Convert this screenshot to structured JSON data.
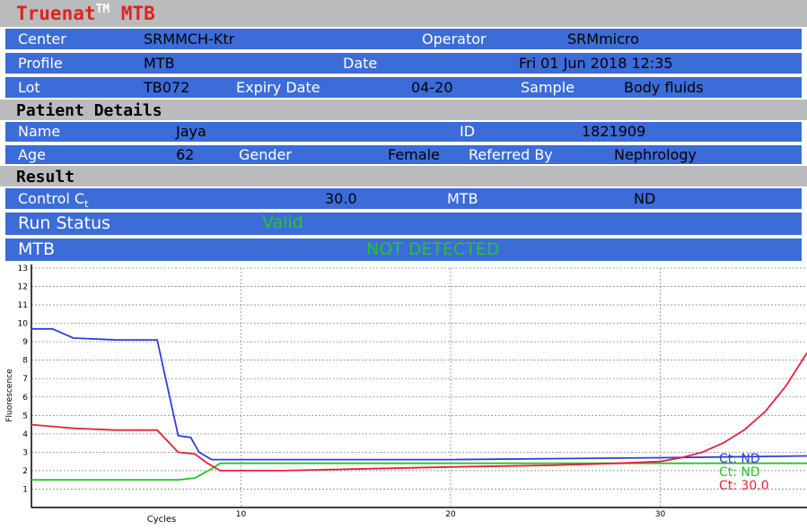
{
  "header": {
    "brand_prefix": "Truenat",
    "trademark": "TM",
    "product": "MTB"
  },
  "info": {
    "center_label": "Center",
    "center_value": "SRMMCH-Ktr",
    "operator_label": "Operator",
    "operator_value": "SRMmicro",
    "profile_label": "Profile",
    "profile_value": "MTB",
    "date_label": "Date",
    "date_value": "Fri 01 Jun 2018 12:35",
    "lot_label": "Lot",
    "lot_value": "TB072",
    "expiry_label": "Expiry Date",
    "expiry_value": "04-20",
    "sample_label": "Sample",
    "sample_value": "Body fluids"
  },
  "patient": {
    "section_title": "Patient Details",
    "name_label": "Name",
    "name_value": "Jaya",
    "id_label": "ID",
    "id_value": "1821909",
    "age_label": "Age",
    "age_value": "62",
    "gender_label": "Gender",
    "gender_value": "Female",
    "referred_label": "Referred By",
    "referred_value": "Nephrology"
  },
  "result": {
    "section_title": "Result",
    "control_label": "Control C",
    "control_sub": "t",
    "control_value": "30.0",
    "mtb_label": "MTB",
    "mtb_value": "ND",
    "run_status_label": "Run Status",
    "run_status_value": "Valid",
    "mtb_result_label": "MTB",
    "mtb_result_value": "NOT DETECTED"
  },
  "colors": {
    "header_bg": "#b9bbbd",
    "row_bg": "#3c6cd8",
    "brand_red": "#e0231b",
    "ok_green": "#27c427"
  },
  "chart_data": {
    "type": "line",
    "xlabel": "Cycles",
    "ylabel": "Fluorescence",
    "xlim": [
      0,
      37
    ],
    "ylim": [
      0,
      13
    ],
    "xticks": [
      10,
      20,
      30
    ],
    "yticks": [
      1,
      2,
      3,
      4,
      5,
      6,
      7,
      8,
      9,
      10,
      11,
      12,
      13
    ],
    "grid": true,
    "series": [
      {
        "name": "Ct: ND",
        "color": "#2f3fd8",
        "x": [
          0,
          1,
          2,
          4,
          5,
          6,
          7,
          7.6,
          8,
          8.6,
          9,
          12,
          20,
          30,
          37
        ],
        "y": [
          9.7,
          9.7,
          9.2,
          9.1,
          9.1,
          9.1,
          3.9,
          3.8,
          3.0,
          2.6,
          2.6,
          2.6,
          2.6,
          2.7,
          2.8
        ]
      },
      {
        "name": "Ct: ND",
        "color": "#27c427",
        "x": [
          0,
          2,
          5,
          7,
          7.8,
          8.6,
          9,
          20,
          30,
          37
        ],
        "y": [
          1.5,
          1.5,
          1.5,
          1.5,
          1.6,
          2.1,
          2.4,
          2.4,
          2.4,
          2.4
        ]
      },
      {
        "name": "Ct: 30.0",
        "color": "#e8203a",
        "x": [
          0,
          1,
          2,
          4,
          5,
          6,
          7,
          7.8,
          8.4,
          9,
          12,
          20,
          25,
          28,
          30,
          31,
          32,
          33,
          34,
          35,
          36,
          37
        ],
        "y": [
          4.5,
          4.4,
          4.3,
          4.2,
          4.2,
          4.2,
          3.0,
          2.9,
          2.4,
          2.0,
          2.0,
          2.2,
          2.3,
          2.4,
          2.5,
          2.7,
          3.0,
          3.5,
          4.2,
          5.2,
          6.6,
          8.4
        ]
      }
    ],
    "legend": [
      "Ct: ND",
      "Ct: ND",
      "Ct: 30.0"
    ]
  }
}
